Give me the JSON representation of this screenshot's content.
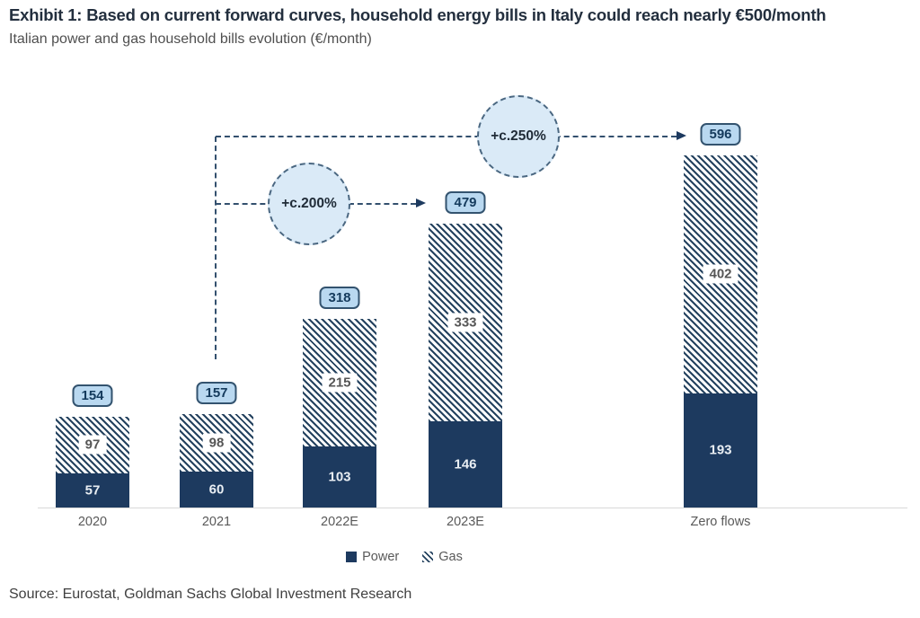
{
  "header": {
    "title": "Exhibit 1: Based on current forward curves, household energy bills in Italy could reach nearly €500/month",
    "subtitle": "Italian power and gas household bills evolution (€/month)"
  },
  "chart_data": {
    "type": "bar",
    "stacked": true,
    "title": "Italian power and gas household bills evolution",
    "ylabel": "€/month",
    "categories": [
      "2020",
      "2021",
      "2022E",
      "2023E",
      "Zero flows"
    ],
    "series": [
      {
        "name": "Power",
        "values": [
          57,
          60,
          103,
          146,
          193
        ]
      },
      {
        "name": "Gas",
        "values": [
          97,
          98,
          215,
          333,
          402
        ]
      }
    ],
    "totals": [
      154,
      157,
      318,
      479,
      596
    ],
    "annotations": [
      {
        "label": "+c.200%",
        "from_category": "2021",
        "to_category": "2023E"
      },
      {
        "label": "+c.250%",
        "from_category": "2021",
        "to_category": "Zero flows"
      }
    ],
    "legend_position": "bottom",
    "grid": false,
    "ylim": [
      0,
      640
    ]
  },
  "colors": {
    "power_navy": "#1d3a5f",
    "total_label_fill": "#b9d8f0",
    "annotation_circle_fill": "#daeaf7",
    "axis_text": "#595959"
  },
  "source": "Source: Eurostat, Goldman Sachs Global Investment Research"
}
